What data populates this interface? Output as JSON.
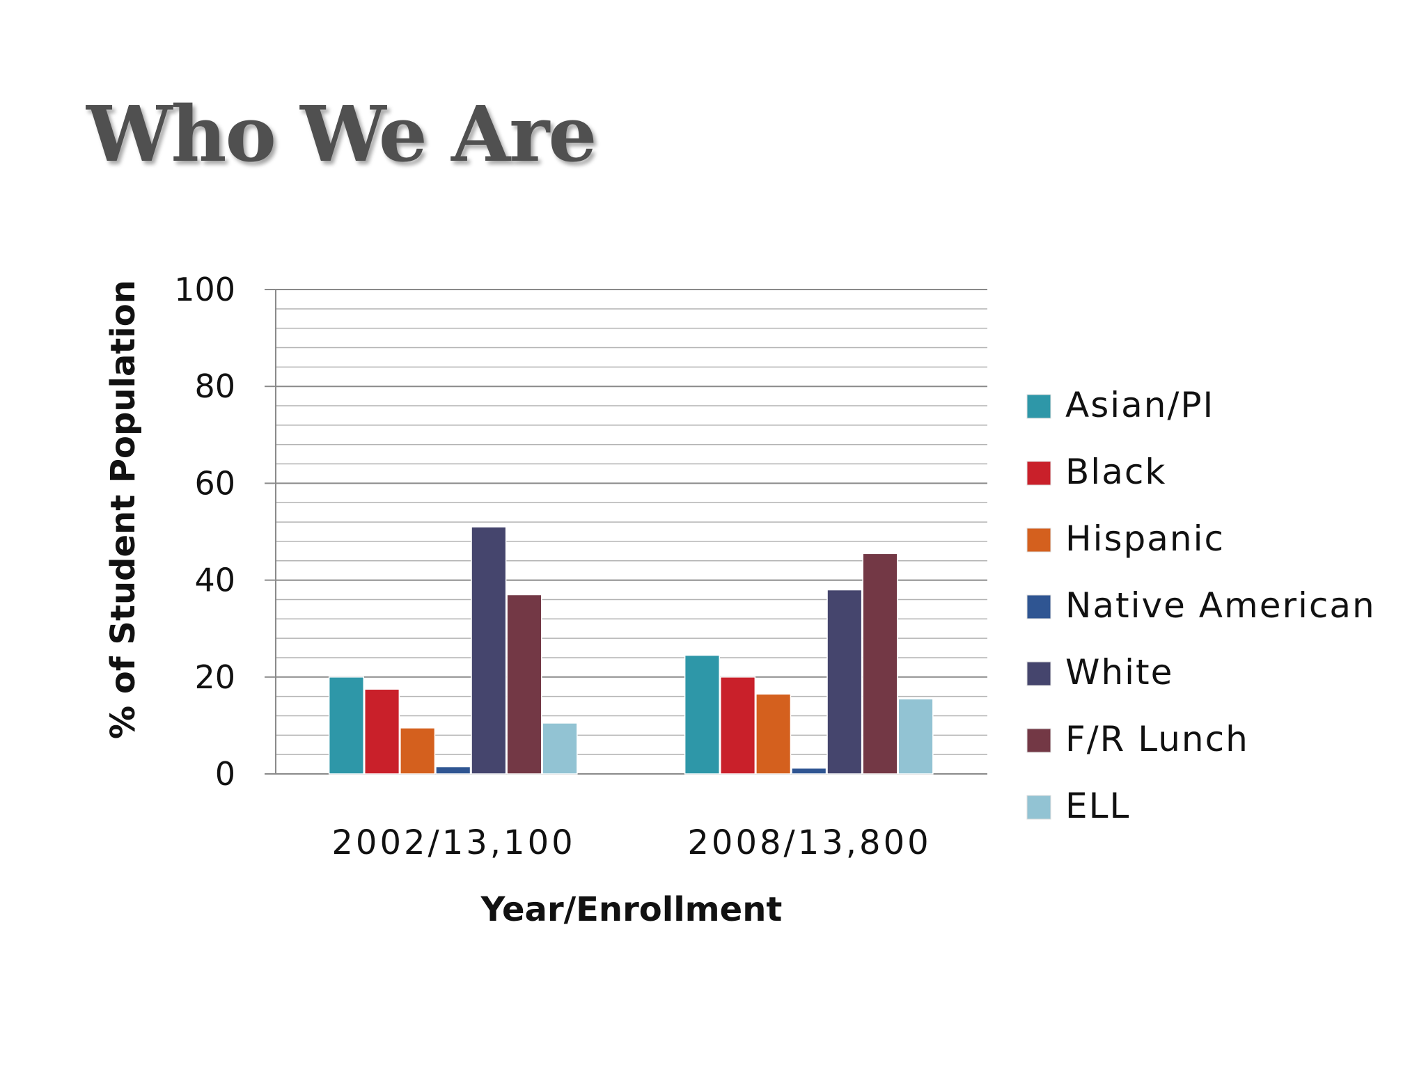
{
  "page": {
    "title": "Who We Are"
  },
  "chart_data": {
    "type": "bar",
    "xlabel": "Year/Enrollment",
    "ylabel": "% of Student Population",
    "ylim": [
      0,
      100
    ],
    "yticks": [
      0,
      20,
      40,
      60,
      80,
      100
    ],
    "minor_grid_step": 4,
    "grid": true,
    "legend_position": "right",
    "categories": [
      "2002/13,100",
      "2008/13,800"
    ],
    "series": [
      {
        "name": "Asian/PI",
        "color": "#2E97A8",
        "values": [
          20,
          24.5
        ]
      },
      {
        "name": "Black",
        "color": "#C9202A",
        "values": [
          17.5,
          20
        ]
      },
      {
        "name": "Hispanic",
        "color": "#D4601E",
        "values": [
          9.5,
          16.5
        ]
      },
      {
        "name": "Native American",
        "color": "#2F5592",
        "values": [
          1.5,
          1.2
        ]
      },
      {
        "name": "White",
        "color": "#45456D",
        "values": [
          51,
          38
        ]
      },
      {
        "name": "F/R Lunch",
        "color": "#733845",
        "values": [
          37,
          45.5
        ]
      },
      {
        "name": "ELL",
        "color": "#92C3D3",
        "values": [
          10.5,
          15.5
        ]
      }
    ]
  }
}
